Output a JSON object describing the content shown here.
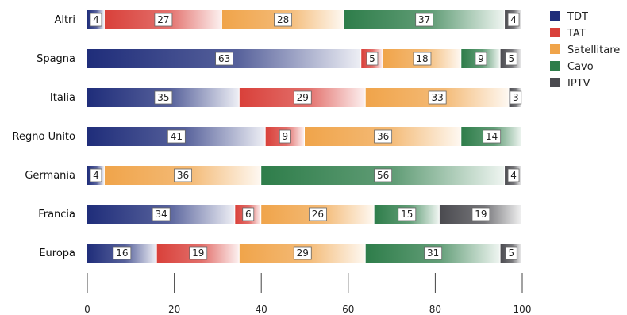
{
  "chart_data": {
    "type": "bar",
    "orientation": "horizontal",
    "stacked": true,
    "categories": [
      "Altri",
      "Spagna",
      "Italia",
      "Regno Unito",
      "Germania",
      "Francia",
      "Europa"
    ],
    "series": [
      {
        "name": "TDT",
        "color": "#1f2d7a",
        "values": [
          4,
          63,
          35,
          41,
          4,
          34,
          16
        ]
      },
      {
        "name": "TAT",
        "color": "#d9403a",
        "values": [
          27,
          5,
          29,
          9,
          0,
          6,
          19
        ]
      },
      {
        "name": "Satellitare",
        "color": "#f0a44a",
        "values": [
          28,
          18,
          33,
          36,
          36,
          26,
          29
        ]
      },
      {
        "name": "Cavo",
        "color": "#2e7d4a",
        "values": [
          37,
          9,
          0,
          14,
          56,
          15,
          31
        ]
      },
      {
        "name": "IPTV",
        "color": "#4a4a4f",
        "values": [
          4,
          5,
          3,
          0,
          4,
          19,
          5
        ]
      }
    ],
    "xlim": [
      0,
      100
    ],
    "xticks": [
      "0",
      "20",
      "40",
      "60",
      "80",
      "100"
    ],
    "grid": false,
    "legend_position": "right"
  }
}
